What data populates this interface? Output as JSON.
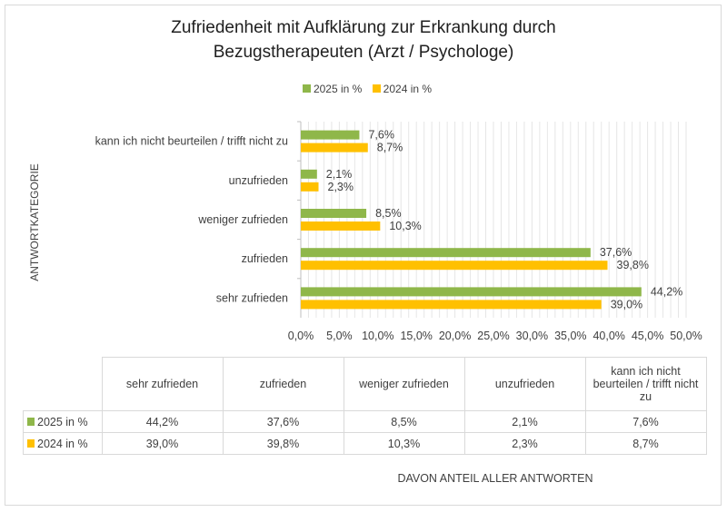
{
  "chart_data": {
    "type": "bar",
    "orientation": "horizontal",
    "title": "Zufriedenheit mit Aufklärung zur Erkrankung durch Bezugstherapeuten (Arzt / Psychologe)",
    "title_lines": [
      "Zufriedenheit mit Aufklärung zur Erkrankung durch",
      "Bezugstherapeuten (Arzt / Psychologe)"
    ],
    "ylabel": "ANTWORTKATEGORIE",
    "xlabel": "DAVON ANTEIL ALLER ANTWORTEN",
    "categories": [
      "sehr zufrieden",
      "zufrieden",
      "weniger zufrieden",
      "unzufrieden",
      "kann ich nicht beurteilen / trifft nicht zu"
    ],
    "table_headers": [
      "sehr zufrieden",
      "zufrieden",
      "weniger zufrieden",
      "unzufrieden",
      "kann ich nicht beurteilen / trifft nicht zu"
    ],
    "series": [
      {
        "name": "2025 in %",
        "color": "#8fb74a",
        "values": [
          44.2,
          37.6,
          8.5,
          2.1,
          7.6
        ],
        "labels": [
          "44,2%",
          "37,6%",
          "8,5%",
          "2,1%",
          "7,6%"
        ]
      },
      {
        "name": "2024 in %",
        "color": "#ffc000",
        "values": [
          39.0,
          39.8,
          10.3,
          2.3,
          8.7
        ],
        "labels": [
          "39,0%",
          "39,8%",
          "10,3%",
          "2,3%",
          "8,7%"
        ]
      }
    ],
    "xlim": [
      0,
      50
    ],
    "xticks": [
      "0,0%",
      "5,0%",
      "10,0%",
      "15,0%",
      "20,0%",
      "25,0%",
      "30,0%",
      "35,0%",
      "40,0%",
      "45,0%",
      "50,0%"
    ],
    "grid": true,
    "legend": "top",
    "data_table": true
  }
}
